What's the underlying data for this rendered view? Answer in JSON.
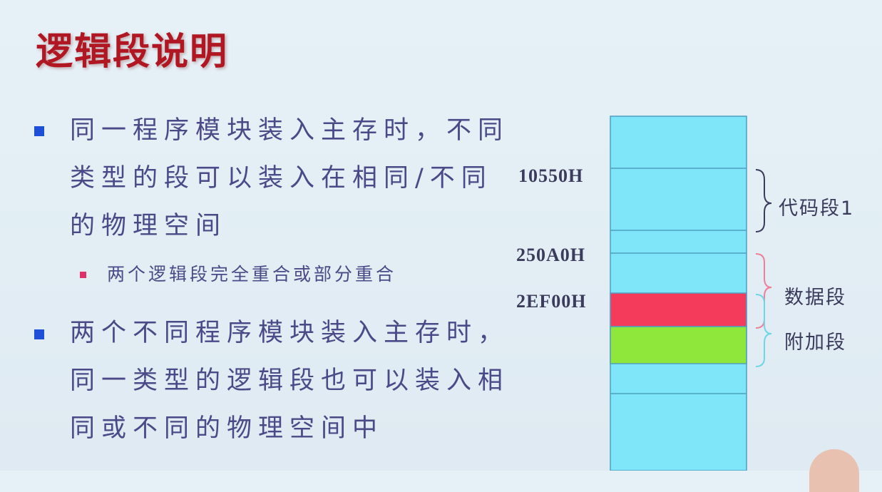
{
  "slide": {
    "title": "逻辑段说明",
    "bullets": [
      {
        "lines": [
          "同一程序模块装入主存时，不同",
          "类型的段可以装入在相同/不同",
          "的物理空间"
        ],
        "sub": "两个逻辑段完全重合或部分重合"
      },
      {
        "lines": [
          "两个不同程序模块装入主存时，",
          "同一类型的逻辑段也可以装入相",
          "同或不同的物理空间中"
        ]
      }
    ]
  },
  "diagram": {
    "addresses": [
      "10550H",
      "250A0H",
      "2EF00H"
    ],
    "segments": [
      "代码段1",
      "数据段",
      "附加段"
    ],
    "colors": {
      "memory": "#7fe6f9",
      "line": "#4f9fc0",
      "highlight_red": "#f53b5c",
      "highlight_green": "#8fe73b",
      "brace_code": "#3b3b5c",
      "brace_data": "#f07d9a",
      "brace_extra": "#6fd6e8"
    }
  }
}
